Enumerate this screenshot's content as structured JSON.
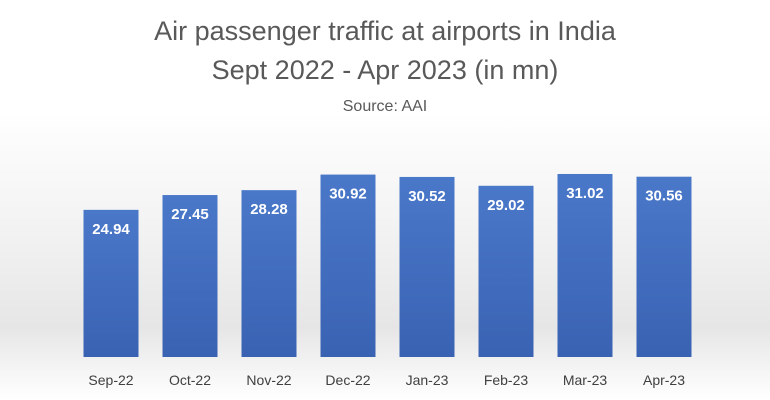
{
  "chart_data": {
    "type": "bar",
    "title_lines": [
      "Air passenger traffic at airports in India",
      "Sept 2022 - Apr 2023 (in mn)"
    ],
    "subtitle": "Source: AAI",
    "categories": [
      "Sep-22",
      "Oct-22",
      "Nov-22",
      "Dec-22",
      "Jan-23",
      "Feb-23",
      "Mar-23",
      "Apr-23"
    ],
    "values": [
      24.94,
      27.45,
      28.28,
      30.92,
      30.52,
      29.02,
      31.02,
      30.56
    ],
    "data_labels": [
      "24.94",
      "27.45",
      "28.28",
      "30.92",
      "30.52",
      "29.02",
      "31.02",
      "30.56"
    ],
    "ylim": [
      0,
      35
    ],
    "grid": false,
    "legend": "none",
    "bar_color": "#4472c4"
  }
}
